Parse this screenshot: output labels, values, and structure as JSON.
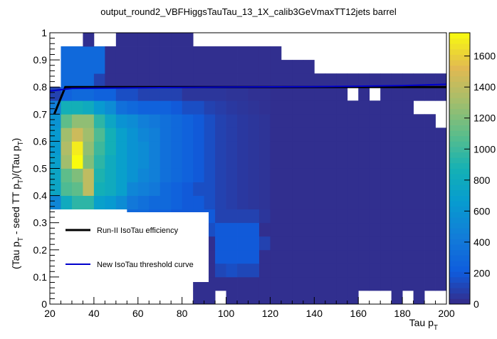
{
  "chart_data": {
    "type": "heatmap",
    "title": "output_round2_VBFHiggsTauTau_13_1X_calib3GeVmaxTT12jets barrel",
    "xlabel": "Tau p",
    "xlabel_sub": "T",
    "ylabel_parts": [
      "(Tau p",
      "T",
      " - seed TT p",
      "T",
      ")/(Tau p",
      "T",
      ")"
    ],
    "xlim": [
      20,
      200
    ],
    "ylim": [
      0,
      1
    ],
    "x_ticks": [
      20,
      40,
      60,
      80,
      100,
      120,
      140,
      160,
      180,
      200
    ],
    "x_tick_labels": [
      "20",
      "40",
      "60",
      "80",
      "100",
      "120",
      "140",
      "160",
      "180",
      "200"
    ],
    "y_ticks": [
      0,
      0.1,
      0.2,
      0.3,
      0.4,
      0.5,
      0.6,
      0.7,
      0.8,
      0.9,
      1
    ],
    "y_tick_labels": [
      "0",
      "0.1",
      "0.2",
      "0.3",
      "0.4",
      "0.5",
      "0.6",
      "0.7",
      "0.8",
      "0.9",
      "1"
    ],
    "colorbar": {
      "min": 0,
      "max": 1750,
      "ticks": [
        0,
        200,
        400,
        600,
        800,
        1000,
        1200,
        1400,
        1600
      ],
      "tick_labels": [
        "0",
        "200",
        "400",
        "600",
        "800",
        "1000",
        "1200",
        "1400",
        "1600"
      ]
    },
    "x_bin_edges": [
      20,
      25,
      30,
      35,
      40,
      45,
      50,
      55,
      60,
      65,
      70,
      75,
      80,
      85,
      90,
      95,
      100,
      105,
      110,
      115,
      120,
      125,
      130,
      135,
      140,
      145,
      150,
      155,
      160,
      165,
      170,
      175,
      180,
      185,
      190,
      195,
      200
    ],
    "y_bin_edges": [
      0,
      0.05,
      0.1,
      0.15,
      0.2,
      0.25,
      0.3,
      0.35,
      0.4,
      0.45,
      0.5,
      0.55,
      0.6,
      0.65,
      0.7,
      0.75,
      0.8,
      0.85,
      0.9,
      0.95,
      1
    ],
    "z": [
      [
        0,
        0,
        0,
        0,
        0,
        0,
        0,
        0,
        0,
        0,
        0,
        0,
        0,
        20,
        20,
        0,
        20,
        20,
        20,
        20,
        20,
        20,
        20,
        20,
        20,
        20,
        20,
        20,
        0,
        0,
        0,
        20,
        0,
        20,
        0,
        0
      ],
      [
        0,
        0,
        0,
        0,
        0,
        0,
        0,
        0,
        0,
        0,
        0,
        0,
        0,
        20,
        20,
        20,
        20,
        20,
        20,
        20,
        20,
        20,
        20,
        20,
        20,
        20,
        20,
        20,
        20,
        20,
        20,
        20,
        20,
        20,
        20,
        20
      ],
      [
        0,
        0,
        0,
        0,
        0,
        0,
        0,
        0,
        0,
        0,
        0,
        0,
        0,
        20,
        20,
        120,
        150,
        120,
        120,
        20,
        20,
        20,
        20,
        20,
        20,
        20,
        20,
        20,
        20,
        20,
        20,
        20,
        20,
        20,
        20,
        20
      ],
      [
        0,
        0,
        0,
        0,
        0,
        0,
        0,
        0,
        0,
        0,
        0,
        0,
        0,
        20,
        20,
        200,
        200,
        200,
        200,
        20,
        20,
        20,
        20,
        20,
        20,
        20,
        20,
        20,
        20,
        20,
        20,
        20,
        20,
        20,
        20,
        20
      ],
      [
        0,
        0,
        0,
        0,
        0,
        0,
        0,
        0,
        0,
        0,
        0,
        0,
        0,
        20,
        20,
        200,
        200,
        200,
        200,
        100,
        20,
        20,
        20,
        20,
        20,
        20,
        20,
        20,
        20,
        20,
        20,
        20,
        20,
        20,
        20,
        20
      ],
      [
        0,
        0,
        0,
        0,
        0,
        0,
        0,
        0,
        0,
        0,
        0,
        0,
        0,
        20,
        150,
        200,
        200,
        200,
        200,
        20,
        20,
        20,
        20,
        20,
        20,
        20,
        20,
        20,
        20,
        20,
        20,
        20,
        20,
        20,
        20,
        20
      ],
      [
        0,
        0,
        0,
        0,
        0,
        0,
        0,
        300,
        300,
        250,
        250,
        200,
        200,
        200,
        200,
        100,
        100,
        100,
        100,
        50,
        20,
        20,
        20,
        20,
        20,
        20,
        20,
        20,
        20,
        20,
        20,
        20,
        20,
        20,
        20,
        20
      ],
      [
        500,
        800,
        950,
        950,
        700,
        650,
        550,
        400,
        350,
        300,
        300,
        250,
        200,
        200,
        150,
        100,
        80,
        60,
        50,
        40,
        20,
        20,
        20,
        20,
        20,
        20,
        20,
        20,
        20,
        20,
        20,
        20,
        20,
        20,
        20,
        20
      ],
      [
        750,
        1050,
        1100,
        1400,
        850,
        800,
        700,
        500,
        450,
        400,
        300,
        250,
        200,
        150,
        150,
        100,
        80,
        60,
        50,
        40,
        20,
        20,
        20,
        20,
        20,
        20,
        20,
        20,
        20,
        20,
        20,
        20,
        20,
        20,
        20,
        20
      ],
      [
        750,
        1100,
        1200,
        1400,
        900,
        800,
        700,
        600,
        500,
        450,
        350,
        300,
        250,
        200,
        150,
        100,
        80,
        60,
        50,
        40,
        20,
        20,
        20,
        20,
        20,
        20,
        20,
        20,
        20,
        20,
        20,
        20,
        20,
        20,
        20,
        20
      ],
      [
        700,
        1300,
        1750,
        1200,
        950,
        800,
        700,
        600,
        550,
        450,
        350,
        300,
        250,
        200,
        150,
        100,
        80,
        60,
        50,
        40,
        20,
        20,
        20,
        20,
        20,
        20,
        20,
        20,
        20,
        20,
        20,
        20,
        20,
        20,
        20,
        20
      ],
      [
        650,
        1350,
        1700,
        1250,
        1000,
        850,
        700,
        600,
        550,
        450,
        350,
        300,
        250,
        200,
        150,
        100,
        80,
        60,
        50,
        40,
        20,
        20,
        20,
        20,
        20,
        20,
        20,
        20,
        20,
        20,
        20,
        20,
        20,
        20,
        20,
        20
      ],
      [
        650,
        1300,
        1450,
        1300,
        1050,
        850,
        700,
        600,
        500,
        450,
        350,
        300,
        250,
        200,
        150,
        100,
        80,
        60,
        50,
        40,
        20,
        20,
        20,
        20,
        20,
        20,
        20,
        20,
        20,
        20,
        20,
        20,
        20,
        20,
        20,
        20
      ],
      [
        600,
        1100,
        1250,
        1250,
        950,
        750,
        600,
        550,
        450,
        400,
        350,
        300,
        250,
        200,
        150,
        100,
        80,
        60,
        50,
        40,
        20,
        20,
        20,
        20,
        20,
        20,
        20,
        20,
        20,
        20,
        20,
        20,
        20,
        20,
        20,
        0
      ],
      [
        450,
        850,
        850,
        800,
        650,
        550,
        350,
        300,
        250,
        250,
        250,
        200,
        150,
        150,
        100,
        80,
        60,
        50,
        40,
        30,
        20,
        20,
        20,
        20,
        20,
        20,
        20,
        20,
        20,
        20,
        20,
        20,
        20,
        0,
        0,
        0
      ],
      [
        100,
        250,
        300,
        300,
        250,
        250,
        150,
        150,
        100,
        100,
        100,
        100,
        50,
        50,
        50,
        50,
        40,
        40,
        30,
        30,
        20,
        20,
        20,
        20,
        20,
        20,
        20,
        0,
        20,
        0,
        20,
        20,
        20,
        20,
        20,
        20
      ],
      [
        0,
        300,
        300,
        300,
        100,
        20,
        20,
        20,
        20,
        20,
        20,
        20,
        20,
        20,
        20,
        20,
        20,
        20,
        20,
        20,
        20,
        20,
        20,
        20,
        20,
        20,
        20,
        20,
        20,
        20,
        20,
        20,
        20,
        20,
        20,
        20
      ],
      [
        0,
        300,
        300,
        300,
        300,
        20,
        20,
        20,
        20,
        20,
        20,
        20,
        20,
        20,
        20,
        20,
        20,
        20,
        20,
        20,
        20,
        20,
        20,
        20,
        0,
        0,
        0,
        0,
        0,
        0,
        0,
        0,
        0,
        0,
        0,
        0
      ],
      [
        0,
        300,
        300,
        300,
        300,
        20,
        20,
        20,
        20,
        20,
        20,
        20,
        20,
        20,
        20,
        20,
        20,
        20,
        20,
        20,
        20,
        0,
        0,
        0,
        0,
        0,
        0,
        0,
        0,
        0,
        0,
        0,
        0,
        0,
        0,
        0
      ],
      [
        0,
        0,
        0,
        20,
        0,
        0,
        20,
        20,
        20,
        20,
        20,
        20,
        20,
        0,
        0,
        0,
        0,
        0,
        0,
        0,
        0,
        0,
        0,
        0,
        0,
        0,
        0,
        0,
        0,
        0,
        0,
        0,
        0,
        0,
        0,
        0
      ]
    ],
    "white_patches_bottom_row": [
      [
        0,
        0,
        0,
        0,
        0,
        0,
        0,
        0,
        0,
        0,
        0,
        0,
        0,
        20,
        20,
        0,
        20,
        20,
        20,
        20,
        20,
        20,
        20,
        20,
        20,
        20,
        20,
        20,
        0,
        0,
        0,
        20,
        0,
        20,
        0,
        0
      ]
    ],
    "series": [
      {
        "name": "Run-II IsoTau efficiency",
        "color": "#000000",
        "x": [
          22,
          27,
          29,
          200
        ],
        "y": [
          0.7,
          0.8,
          0.8,
          0.8
        ]
      },
      {
        "name": "New IsoTau threshold curve",
        "color": "#0000cc",
        "x": [
          20,
          30,
          60,
          100,
          140,
          180,
          200
        ],
        "y": [
          0.785,
          0.795,
          0.797,
          0.8,
          0.801,
          0.805,
          0.81
        ]
      }
    ],
    "legend": {
      "placement": "bottom-left",
      "entries": [
        "Run-II IsoTau efficiency",
        "New IsoTau threshold curve"
      ]
    },
    "grid": false
  }
}
